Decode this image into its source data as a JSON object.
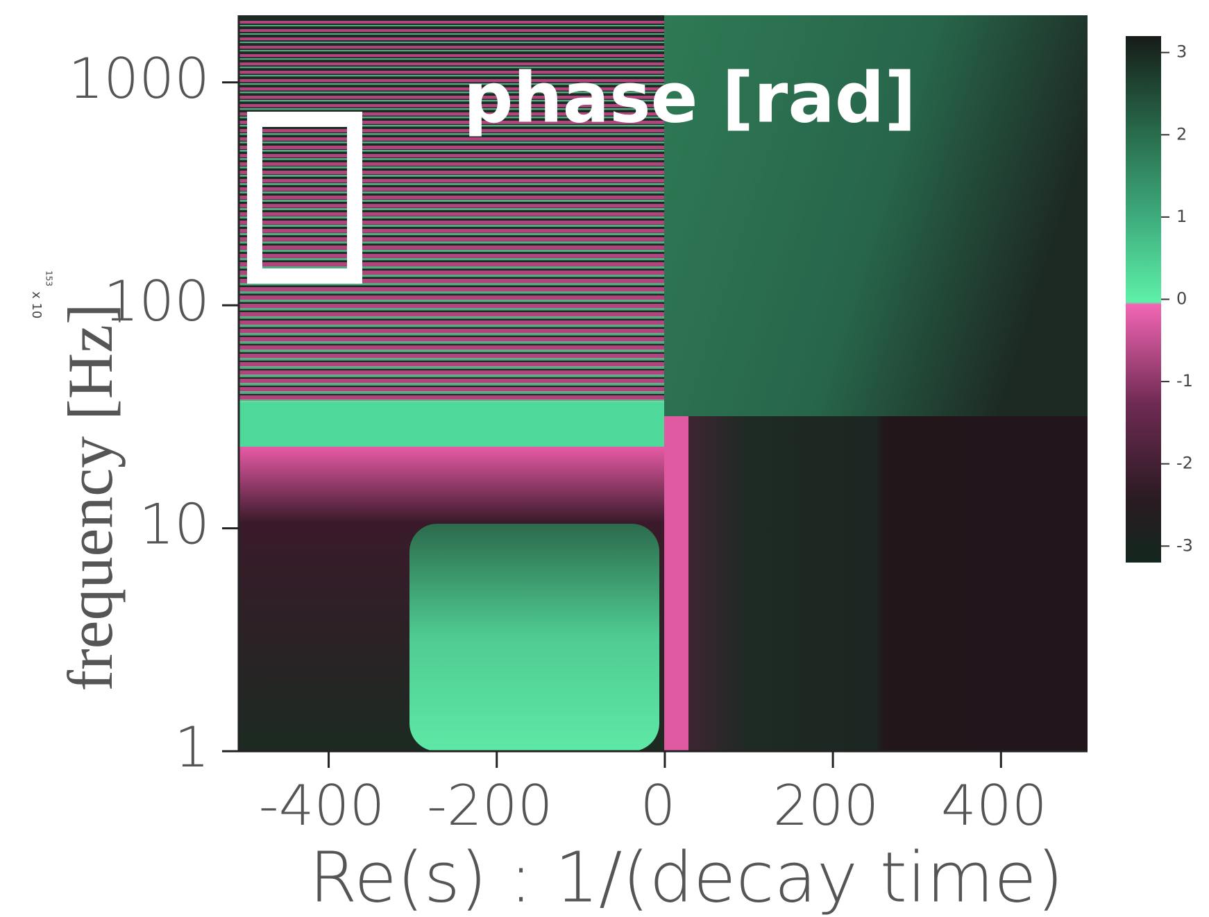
{
  "chart_data": {
    "type": "heatmap",
    "title": "phase [rad]",
    "xlabel": "Re(s) : 1/(decay time)",
    "ylabel": "frequency [Hz]",
    "annotations": [
      "x 10",
      "153"
    ],
    "xlim": [
      -507,
      503
    ],
    "xticks": [
      -400,
      -200,
      0,
      200,
      400
    ],
    "ylim": [
      1,
      2000
    ],
    "yscale": "log",
    "yticks": [
      1,
      10,
      100,
      1000
    ],
    "colorbar": {
      "clim": [
        -3.2,
        3.2
      ],
      "ticks": [
        3,
        2,
        1,
        0,
        -1,
        -2,
        -3
      ]
    }
  }
}
